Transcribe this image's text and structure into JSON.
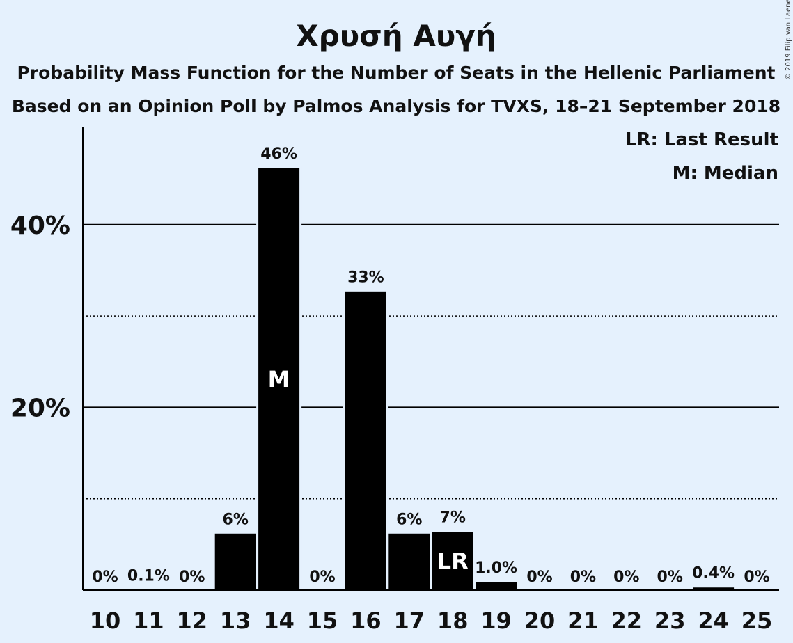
{
  "colors": {
    "background": "#e5f1fd",
    "bar": "#000000",
    "bar_stroke": "#e5f1fd",
    "text": "#111111",
    "inbar_text": "#ffffff"
  },
  "copyright": "© 2019 Filip van Laenen",
  "chart_data": {
    "type": "bar",
    "title": "Χρυσή Αυγή",
    "subtitle_lines": [
      "Probability Mass Function for the Number of Seats in the Hellenic Parliament",
      "Based on an Opinion Poll by Palmos Analysis for TVXS, 18–21 September 2018"
    ],
    "categories": [
      "10",
      "11",
      "12",
      "13",
      "14",
      "15",
      "16",
      "17",
      "18",
      "19",
      "20",
      "21",
      "22",
      "23",
      "24",
      "25"
    ],
    "values": [
      0,
      0.1,
      0,
      6.3,
      46.3,
      0,
      32.8,
      6.3,
      6.5,
      1.0,
      0,
      0,
      0,
      0,
      0.4,
      0
    ],
    "value_labels": [
      "0%",
      "0.1%",
      "0%",
      "6%",
      "46%",
      "0%",
      "33%",
      "6%",
      "7%",
      "1.0%",
      "0%",
      "0%",
      "0%",
      "0%",
      "0.4%",
      "0%"
    ],
    "y_ticks": [
      {
        "value": 20,
        "label": "20%"
      },
      {
        "value": 40,
        "label": "40%"
      }
    ],
    "minor_gridlines": [
      10,
      30
    ],
    "ylim": [
      0,
      50
    ],
    "median_seats": "14",
    "median_marker": "M",
    "last_result_seats": "18",
    "last_result_marker": "LR",
    "legend": [
      "LR: Last Result",
      "M: Median"
    ],
    "legend_position": "top-right",
    "grid": true
  }
}
